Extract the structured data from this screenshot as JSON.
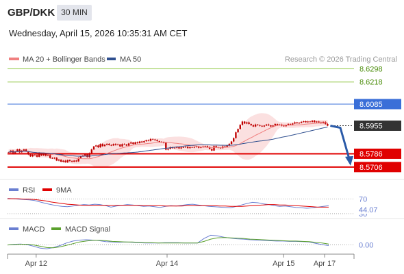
{
  "header": {
    "symbol": "GBP/DKK",
    "timeframe": "30 MIN",
    "datetime": "Wednesday, April 15, 2026 10:35:31 AM CET"
  },
  "legend": {
    "ma20_label": "MA 20 + Bollinger Bands",
    "ma50_label": "MA 50",
    "copyright": "Research © 2026 Trading Central"
  },
  "colors": {
    "ma20": "#f08080",
    "ma50": "#2f4f8f",
    "bollinger_fill": "#f9d6d6",
    "candle": "#c00000",
    "resistance": "#8dc63f",
    "resistance_text": "#4a8c0a",
    "pivot_line": "#3a6fd8",
    "support": "#e00000",
    "current_price_bg": "#333333",
    "arrow": "#2a5aa8",
    "rsi": "#6a7fd1",
    "rsi_ma": "#e00000",
    "macd": "#6a7fd1",
    "macd_signal": "#5aa02c"
  },
  "chart_data": [
    {
      "type": "candlestick",
      "panel": "price",
      "ylim": [
        8.566,
        8.632
      ],
      "x_range": [
        0,
        157
      ],
      "x_ticks": [
        {
          "x": 14,
          "label": "Apr 12"
        },
        {
          "x": 78,
          "label": "Apr 14"
        },
        {
          "x": 135,
          "label": "Apr 15"
        },
        {
          "x": 155,
          "label": "Apr 17"
        }
      ],
      "levels": [
        {
          "value": 8.6298,
          "label": "8.6298",
          "kind": "resistance"
        },
        {
          "value": 8.6218,
          "label": "8.6218",
          "kind": "resistance"
        },
        {
          "value": 8.6085,
          "label": "8.6085",
          "kind": "pivot"
        },
        {
          "value": 8.5955,
          "label": "8.5955",
          "kind": "current"
        },
        {
          "value": 8.5786,
          "label": "8.5786",
          "kind": "support"
        },
        {
          "value": 8.5706,
          "label": "8.5706",
          "kind": "support"
        }
      ],
      "closes": [
        8.5795,
        8.5805,
        8.579,
        8.58,
        8.5812,
        8.5795,
        8.5805,
        8.5812,
        8.58,
        8.5782,
        8.577,
        8.578,
        8.5778,
        8.5768,
        8.579,
        8.5776,
        8.5785,
        8.5774,
        8.5778,
        8.576,
        8.5758,
        8.5762,
        8.5745,
        8.575,
        8.5738,
        8.5744,
        8.5735,
        8.5748,
        8.5742,
        8.5738,
        8.5745,
        8.574,
        8.576,
        8.577,
        8.5775,
        8.5782,
        8.5766,
        8.579,
        8.5812,
        8.583,
        8.5836,
        8.5825,
        8.5845,
        8.5832,
        8.584,
        8.5846,
        8.5838,
        8.5836,
        8.5845,
        8.5839,
        8.5842,
        8.583,
        8.5844,
        8.5842,
        8.5835,
        8.5848,
        8.5854,
        8.5845,
        8.5855,
        8.585,
        8.586,
        8.5855,
        8.5862,
        8.5868,
        8.5864,
        8.5875,
        8.5872,
        8.5868,
        8.5862,
        8.5858,
        8.5855,
        8.5852,
        8.581,
        8.5815,
        8.5825,
        8.582,
        8.5822,
        8.5826,
        8.5818,
        8.5824,
        8.5825,
        8.5828,
        8.582,
        8.5826,
        8.5824,
        8.5826,
        8.583,
        8.5822,
        8.5826,
        8.583,
        8.5832,
        8.5826,
        8.5815,
        8.5805,
        8.5832,
        8.5825,
        8.5822,
        8.582,
        8.583,
        8.5828,
        8.5835,
        8.5845,
        8.586,
        8.588,
        8.5915,
        8.5935,
        8.596,
        8.598,
        8.5968,
        8.5975,
        8.5965,
        8.5958,
        8.595,
        8.5962,
        8.5958,
        8.5954,
        8.595,
        8.5956,
        8.5962,
        8.5957,
        8.595,
        8.5956,
        8.5965,
        8.5958,
        8.5962,
        8.5955,
        8.5952,
        8.5958,
        8.5965,
        8.5962,
        8.5968,
        8.5975,
        8.597,
        8.5972,
        8.5978,
        8.5982,
        8.5976,
        8.598,
        8.5978,
        8.5985,
        8.5976,
        8.598,
        8.5975,
        8.597,
        8.5978,
        8.5965,
        8.5955
      ],
      "ma20_approx": "computed",
      "forecast_arrow": {
        "from": 8.5955,
        "to": 8.5706
      }
    },
    {
      "type": "line",
      "panel": "rsi",
      "title": "RSI",
      "series": [
        {
          "name": "RSI",
          "values": [
            72,
            71,
            70,
            69,
            68,
            66,
            62,
            58,
            55,
            52,
            50,
            49,
            51,
            53,
            55,
            54,
            56,
            55,
            52,
            48,
            51,
            53,
            55,
            54,
            52,
            50,
            51,
            49,
            47,
            50,
            52,
            51,
            53,
            55,
            56,
            54,
            52,
            50,
            49,
            48,
            47,
            46,
            50,
            54,
            58,
            61,
            60,
            57,
            55,
            52,
            50,
            51,
            49,
            47,
            46,
            45,
            46,
            48,
            50,
            52
          ]
        },
        {
          "name": "9MA",
          "values": [
            71,
            71,
            71,
            70,
            70,
            69,
            67,
            65,
            62,
            60,
            58,
            56,
            55,
            54,
            53,
            53,
            53,
            53,
            53,
            53,
            53,
            53,
            53,
            53,
            53,
            52,
            52,
            52,
            52,
            51,
            51,
            51,
            51,
            52,
            52,
            52,
            52,
            52,
            52,
            51,
            51,
            50,
            50,
            50,
            51,
            52,
            53,
            54,
            55,
            55,
            54,
            54,
            53,
            52,
            51,
            50,
            49,
            48,
            48,
            48
          ]
        }
      ],
      "ylim": [
        28,
        75
      ],
      "ticks": [
        {
          "value": 70,
          "label": "70"
        },
        {
          "value": 30,
          "label": "30"
        }
      ],
      "current_label": "44.07"
    },
    {
      "type": "line",
      "panel": "macd",
      "title": "MACD",
      "series": [
        {
          "name": "MACD",
          "values": [
            0,
            0.0002,
            0.0003,
            0.0001,
            -0.0004,
            -0.001,
            -0.0012,
            -0.0008,
            -0.0002,
            0.0006,
            0.0012,
            0.0015,
            0.0016,
            0.0015,
            0.0013,
            0.001,
            0.0009,
            0.0008,
            0.0009,
            0.0008,
            0.0007,
            0.0006,
            0.0006,
            0.0006,
            0.0007,
            0.0007,
            0.0007,
            0.0006,
            0.0006,
            0.0006,
            0.002,
            0.003,
            0.0028,
            0.0024,
            0.0021,
            0.0019,
            0.0018,
            0.0016,
            0.0015,
            0.0014,
            0.0013,
            0.0012,
            0.0012,
            0.0011,
            0.0011,
            0.001,
            0.0009,
            0.0005,
            0.0001,
            -0.0002
          ]
        },
        {
          "name": "MACD Signal",
          "values": [
            0,
            0.0001,
            0.0002,
            0.0002,
            0.0,
            -0.0004,
            -0.0008,
            -0.0009,
            -0.0006,
            -0.0001,
            0.0004,
            0.0009,
            0.0012,
            0.0014,
            0.0014,
            0.0013,
            0.0011,
            0.001,
            0.0009,
            0.0009,
            0.0008,
            0.0007,
            0.0007,
            0.0006,
            0.0006,
            0.0006,
            0.0006,
            0.0006,
            0.0006,
            0.0006,
            0.0011,
            0.0018,
            0.0022,
            0.0023,
            0.0022,
            0.0021,
            0.002,
            0.0018,
            0.0017,
            0.0016,
            0.0015,
            0.0014,
            0.0013,
            0.0012,
            0.0012,
            0.0011,
            0.001,
            0.0008,
            0.0006,
            0.0003
          ]
        }
      ],
      "ylim": [
        -0.0022,
        0.0035
      ],
      "ticks": [
        {
          "value": 0,
          "label": "0.00"
        }
      ]
    }
  ]
}
